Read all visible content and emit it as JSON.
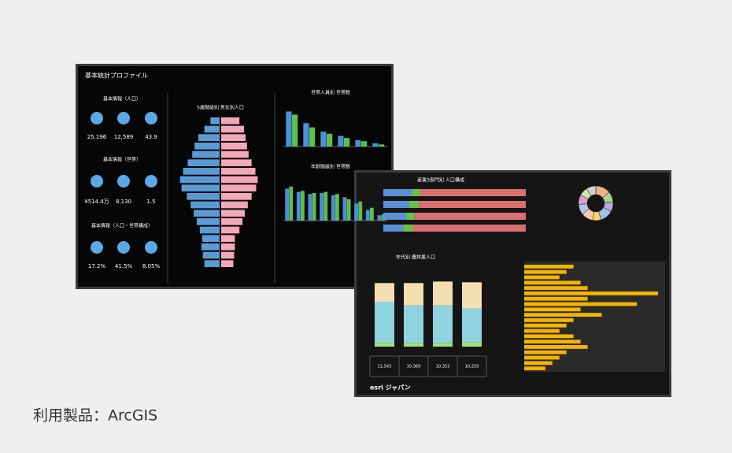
{
  "caption": "利用製品：ArcGIS",
  "screen1": {
    "title": "基本統計プロファイル",
    "sections": [
      {
        "title": "基本情報（人口）",
        "values": [
          "25,196",
          "12,589",
          "43.9"
        ]
      },
      {
        "title": "基本情報（世帯）",
        "values": [
          "¥514.4万",
          "8,130",
          "1.5"
        ]
      },
      {
        "title": "基本情報（人口・世帯構成）",
        "values": [
          "17.2%",
          "41.5%",
          "8.05%"
        ]
      }
    ],
    "pyramid": {
      "title": "5歳階級別 男女別人口",
      "xlim": [
        0,
        6
      ],
      "series": [
        {
          "color": "#5b9bd5",
          "values": [
            1.2,
            2.0,
            2.8,
            3.3,
            3.6,
            4.2,
            4.8,
            5.2,
            5.0,
            4.3,
            3.8,
            3.4,
            3.0,
            2.6,
            2.3,
            2.4,
            2.2,
            2.0
          ]
        },
        {
          "color": "#f4a7b9",
          "values": [
            2.4,
            3.0,
            3.2,
            3.4,
            3.6,
            4.0,
            4.5,
            4.8,
            4.6,
            4.0,
            3.5,
            3.1,
            2.8,
            2.4,
            1.8,
            1.8,
            1.7,
            1.6
          ]
        }
      ]
    },
    "bars": [
      {
        "title": "世帯人員別 世帯数",
        "ylim": [
          0,
          40
        ],
        "series": [
          {
            "color": "#4a90d9",
            "values": [
              33,
              22,
              14,
              10,
              6,
              3
            ]
          },
          {
            "color": "#5cc04a",
            "values": [
              30,
              18,
              12,
              8,
              5,
              2
            ]
          }
        ]
      },
      {
        "title": "年齢階級別 世帯数",
        "ylim": [
          0,
          40
        ],
        "series": [
          {
            "color": "#4a90d9",
            "values": [
              30,
              27,
              25,
              26,
              24,
              22,
              16,
              10,
              5
            ]
          },
          {
            "color": "#5cc04a",
            "values": [
              32,
              28,
              26,
              27,
              25,
              20,
              18,
              12,
              6
            ]
          }
        ]
      }
    ]
  },
  "screen2": {
    "industry": {
      "title": "産業3部門別 人口構成",
      "xlim": [
        0,
        100
      ],
      "series": [
        {
          "color": "#5b8fd8",
          "values": [
            20,
            18,
            16,
            14
          ]
        },
        {
          "color": "#6cc04a",
          "values": [
            6,
            7,
            6,
            7
          ]
        },
        {
          "color": "#d9706f",
          "values": [
            74,
            75,
            78,
            79
          ]
        }
      ]
    },
    "donut": {
      "values": [
        14,
        10,
        9,
        12,
        8,
        11,
        10,
        9,
        8,
        9
      ],
      "colors": [
        "#f4b183",
        "#a9d18e",
        "#c5a3e0",
        "#9dc3e6",
        "#ffd966",
        "#f8cbad",
        "#b4c7e7",
        "#e2a0c8",
        "#c9e4a5",
        "#d0cece"
      ]
    },
    "ages": {
      "title": "年代別 農林業人口",
      "ylim": [
        0,
        100
      ],
      "series": [
        {
          "color": "#9fe07a",
          "values": [
            5,
            5,
            5,
            6
          ]
        },
        {
          "color": "#8fd3e0",
          "values": [
            55,
            50,
            50,
            45
          ]
        },
        {
          "color": "#f3dfb0",
          "values": [
            25,
            30,
            32,
            35
          ]
        }
      ],
      "totals": [
        "11,543",
        "10,369",
        "10,353",
        "10,259"
      ]
    },
    "orange": {
      "color": "#f5b400",
      "xlim": [
        0,
        20
      ],
      "values": [
        7,
        6,
        5,
        8,
        9,
        19,
        9,
        16,
        8,
        11,
        7,
        6,
        5,
        7,
        8,
        9,
        6,
        5,
        4,
        3
      ]
    },
    "brand": "esri ジャパン"
  }
}
